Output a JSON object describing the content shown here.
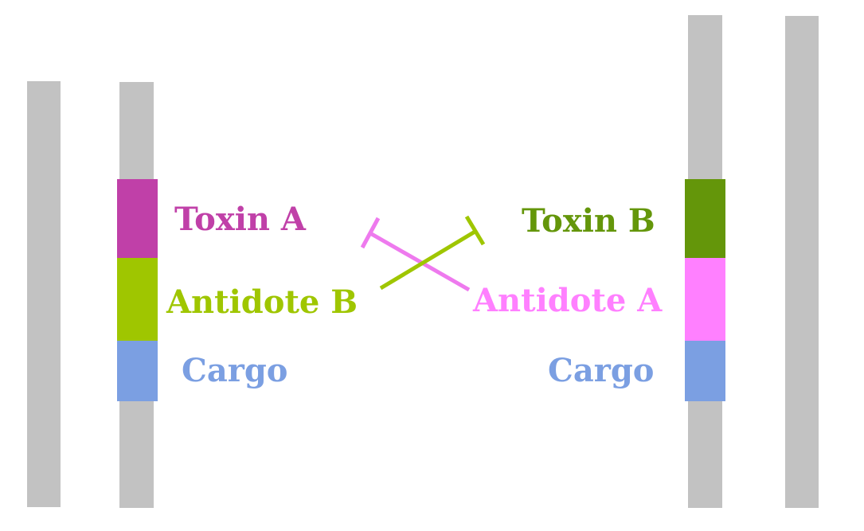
{
  "colors": {
    "chromosome": "#c2c2c2",
    "toxin_a": "#c040a8",
    "antidote_b": "#9fc600",
    "cargo": "#7b9fe2",
    "toxin_b": "#64960a",
    "antidote_a": "#ff80ff"
  },
  "left_construct": {
    "toxin_label": "Toxin A",
    "antidote_label": "Antidote B",
    "cargo_label": "Cargo"
  },
  "right_construct": {
    "toxin_label": "Toxin B",
    "antidote_label": "Antidote A",
    "cargo_label": "Cargo"
  },
  "interactions": [
    {
      "from": "Antidote B",
      "to": "Toxin B",
      "type": "inhibits"
    },
    {
      "from": "Antidote A",
      "to": "Toxin A",
      "type": "inhibits"
    }
  ]
}
